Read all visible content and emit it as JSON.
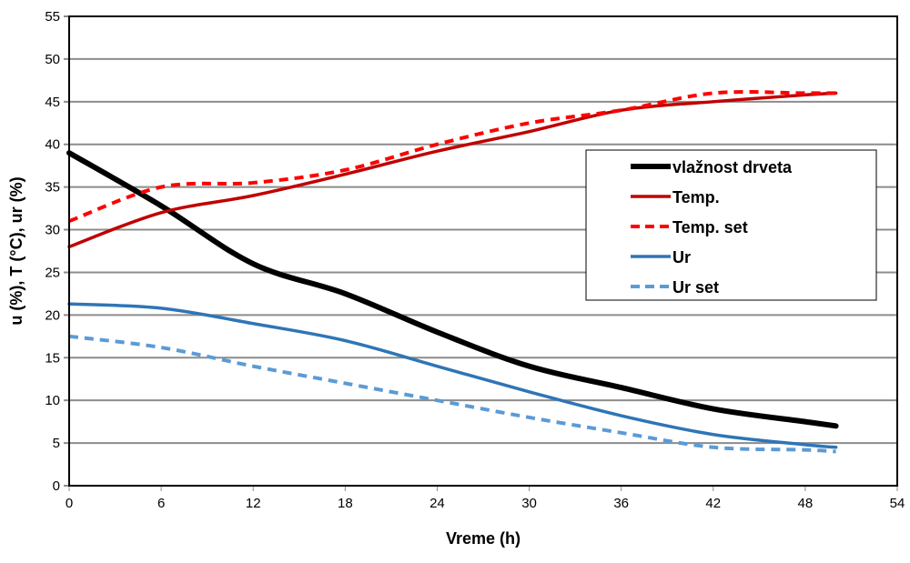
{
  "chart_data": {
    "type": "line",
    "title": "",
    "xlabel": "Vreme (h)",
    "ylabel": "u (%), T (°C), ur (%)",
    "xlim": [
      0,
      54
    ],
    "ylim": [
      0,
      55
    ],
    "xticks": [
      0,
      6,
      12,
      18,
      24,
      30,
      36,
      42,
      48,
      54
    ],
    "yticks": [
      0,
      5,
      10,
      15,
      20,
      25,
      30,
      35,
      40,
      45,
      50,
      55
    ],
    "grid": "horizontal",
    "legend_position": "right",
    "x": [
      0,
      6,
      12,
      18,
      24,
      30,
      36,
      42,
      48,
      50
    ],
    "series": [
      {
        "name": "vlažnost drveta",
        "color": "#000000",
        "style": "solid",
        "values": [
          39,
          32.8,
          26,
          22.5,
          18,
          14,
          11.5,
          9,
          7.5,
          7
        ]
      },
      {
        "name": "Temp.",
        "color": "#c00000",
        "style": "solid",
        "values": [
          28,
          32,
          34,
          36.5,
          39.2,
          41.5,
          44,
          45,
          45.8,
          46
        ]
      },
      {
        "name": "Temp. set",
        "color": "#ff0000",
        "style": "dashed",
        "values": [
          31,
          35,
          35.5,
          37,
          40,
          42.5,
          44,
          46,
          46,
          46
        ]
      },
      {
        "name": "Ur",
        "color": "#2e75b6",
        "style": "solid",
        "values": [
          21.3,
          20.8,
          19,
          17,
          14,
          11,
          8.2,
          6,
          4.8,
          4.5
        ]
      },
      {
        "name": "Ur set",
        "color": "#5b9bd5",
        "style": "dashed",
        "values": [
          17.5,
          16.2,
          14,
          12,
          10,
          8,
          6.2,
          4.5,
          4.2,
          4
        ]
      }
    ]
  }
}
